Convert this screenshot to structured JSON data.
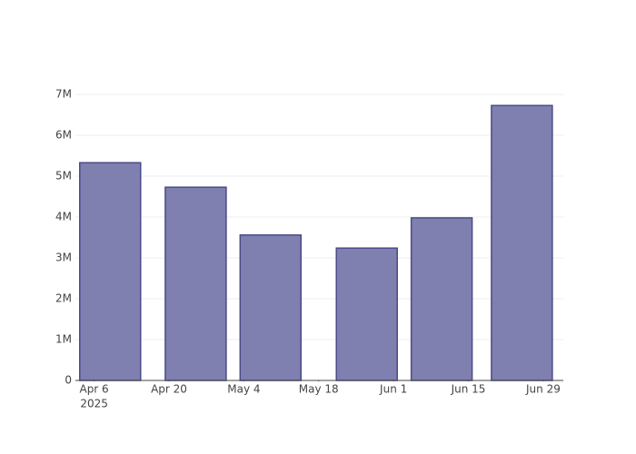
{
  "chart_data": {
    "type": "bar",
    "x": [
      "2025-04-09",
      "2025-04-25",
      "2025-05-09",
      "2025-05-27",
      "2025-06-10",
      "2025-06-25"
    ],
    "values": [
      5330000,
      4730000,
      3560000,
      3240000,
      3980000,
      6730000
    ],
    "color": "#7f7fb0",
    "edge_color": "#4b4b88",
    "xlim": [
      "2025-04-02T12:00:00Z",
      "2025-07-02T18:00:00Z"
    ],
    "xticks": [
      {
        "value": "2025-04-06",
        "label": "Apr 6"
      },
      {
        "value": "2025-04-20",
        "label": "Apr 20"
      },
      {
        "value": "2025-05-04",
        "label": "May 4"
      },
      {
        "value": "2025-05-18",
        "label": "May 18"
      },
      {
        "value": "2025-06-01",
        "label": "Jun 1"
      },
      {
        "value": "2025-06-15",
        "label": "Jun 15"
      },
      {
        "value": "2025-06-29",
        "label": "Jun 29"
      }
    ],
    "x_year_label": "2025",
    "ylim": [
      0,
      7090000
    ],
    "yticks": [
      0,
      {
        "value": 1000000,
        "label": "1M"
      },
      {
        "value": 2000000,
        "label": "2M"
      },
      {
        "value": 3000000,
        "label": "3M"
      },
      {
        "value": 4000000,
        "label": "4M"
      },
      {
        "value": 5000000,
        "label": "5M"
      },
      {
        "value": 6000000,
        "label": "6M"
      },
      {
        "value": 7000000,
        "label": "7M"
      }
    ],
    "grid": true
  }
}
